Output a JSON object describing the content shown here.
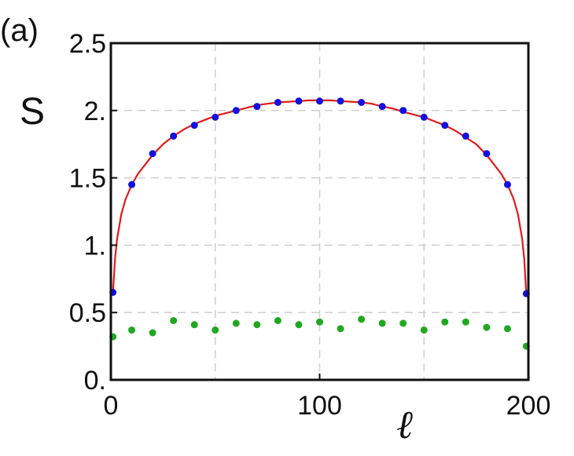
{
  "panel_label": "(a)",
  "chart_data": {
    "type": "scatter",
    "xlabel": "ℓ",
    "ylabel": "S",
    "xlim": [
      0,
      200
    ],
    "ylim": [
      0,
      2.5
    ],
    "x_ticks": [
      0,
      100,
      200
    ],
    "x_tick_labels": [
      "0",
      "100",
      "200"
    ],
    "y_ticks": [
      0,
      0.5,
      1,
      1.5,
      2,
      2.5
    ],
    "y_tick_labels": [
      "0.",
      "0.5",
      "1.",
      "1.5",
      "2.",
      "2.5"
    ],
    "grid": true,
    "colors": {
      "curve": "#e01b1b",
      "series1": "#1010e0",
      "series2": "#20a820"
    },
    "series": [
      {
        "type": "line",
        "x": [
          1,
          2,
          3,
          5,
          7,
          10,
          13,
          16,
          20,
          25,
          30,
          35,
          40,
          45,
          50,
          55,
          60,
          65,
          70,
          75,
          80,
          85,
          90,
          95,
          100,
          105,
          110,
          115,
          120,
          125,
          130,
          135,
          140,
          145,
          150,
          155,
          160,
          165,
          170,
          175,
          180,
          184,
          187,
          190,
          193,
          195,
          197,
          198,
          199
        ],
        "y": [
          0.65,
          0.9,
          1.05,
          1.23,
          1.34,
          1.45,
          1.53,
          1.59,
          1.67,
          1.75,
          1.81,
          1.86,
          1.9,
          1.93,
          1.96,
          1.98,
          2.0,
          2.02,
          2.04,
          2.05,
          2.06,
          2.065,
          2.07,
          2.075,
          2.075,
          2.075,
          2.07,
          2.065,
          2.06,
          2.05,
          2.03,
          2.015,
          1.99,
          1.97,
          1.95,
          1.92,
          1.89,
          1.85,
          1.8,
          1.75,
          1.67,
          1.59,
          1.53,
          1.45,
          1.34,
          1.23,
          1.05,
          0.9,
          0.64
        ]
      },
      {
        "type": "scatter",
        "x": [
          1,
          10,
          20,
          30,
          40,
          50,
          60,
          70,
          80,
          90,
          100,
          110,
          120,
          130,
          140,
          150,
          160,
          170,
          180,
          190,
          199
        ],
        "y": [
          0.65,
          1.45,
          1.68,
          1.81,
          1.89,
          1.95,
          2.0,
          2.03,
          2.06,
          2.07,
          2.07,
          2.07,
          2.06,
          2.03,
          2.0,
          1.95,
          1.89,
          1.81,
          1.68,
          1.45,
          0.64
        ]
      },
      {
        "type": "scatter",
        "x": [
          1,
          10,
          20,
          30,
          40,
          50,
          60,
          70,
          80,
          90,
          100,
          110,
          120,
          130,
          140,
          150,
          160,
          170,
          180,
          190,
          199
        ],
        "y": [
          0.32,
          0.37,
          0.35,
          0.44,
          0.41,
          0.37,
          0.42,
          0.41,
          0.44,
          0.41,
          0.43,
          0.38,
          0.45,
          0.42,
          0.42,
          0.37,
          0.43,
          0.43,
          0.39,
          0.38,
          0.25
        ]
      }
    ]
  }
}
